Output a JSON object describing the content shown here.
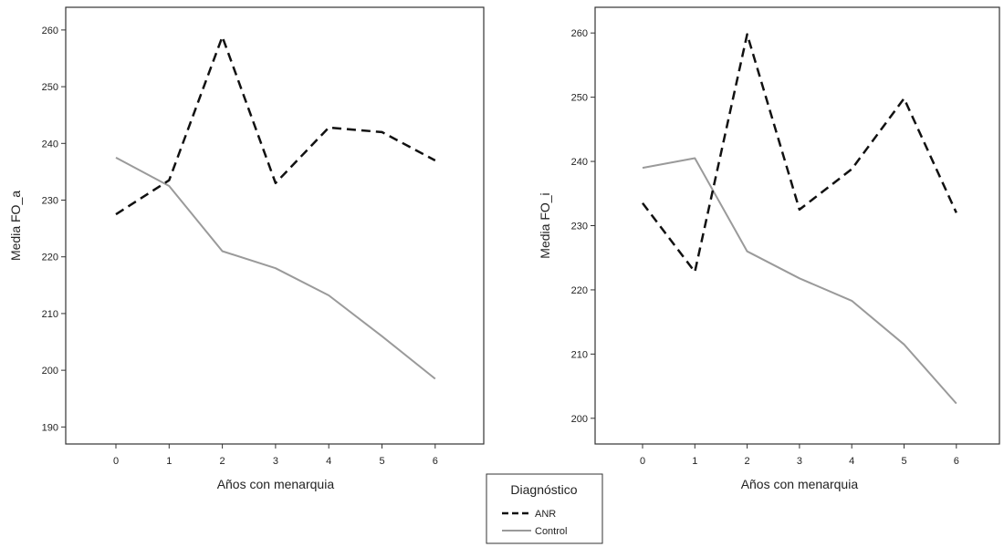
{
  "chart_data": [
    {
      "type": "line",
      "ylabel": "Media FO_a",
      "xlabel": "Años con menarquia",
      "categories": [
        "0",
        "1",
        "2",
        "3",
        "4",
        "5",
        "6"
      ],
      "yticks": [
        "190",
        "200",
        "210",
        "220",
        "230",
        "240",
        "250",
        "260"
      ],
      "ylim": [
        187,
        264
      ],
      "series": [
        {
          "name": "ANR",
          "values": [
            227.5,
            233.5,
            258.8,
            233,
            242.8,
            242,
            237
          ]
        },
        {
          "name": "Control",
          "values": [
            237.5,
            232.5,
            221,
            218,
            213.2,
            206,
            198.5
          ]
        }
      ],
      "grid": false
    },
    {
      "type": "line",
      "ylabel": "Media FO_i",
      "xlabel": "Años con menarquia",
      "categories": [
        "0",
        "1",
        "2",
        "3",
        "4",
        "5",
        "6"
      ],
      "yticks": [
        "200",
        "210",
        "220",
        "230",
        "240",
        "250",
        "260"
      ],
      "ylim": [
        196,
        264
      ],
      "series": [
        {
          "name": "ANR",
          "values": [
            233.5,
            222.8,
            259.8,
            232.5,
            238.8,
            249.8,
            232
          ]
        },
        {
          "name": "Control",
          "values": [
            239,
            240.5,
            226,
            221.8,
            218.3,
            211.5,
            202.3
          ]
        }
      ],
      "grid": false
    }
  ],
  "legend": {
    "title": "Diagnóstico",
    "items": [
      {
        "label": "ANR",
        "color": "#111111",
        "style": "dashed"
      },
      {
        "label": "Control",
        "color": "#9a9a9a",
        "style": "solid"
      }
    ]
  },
  "colors": {
    "anr": "#111111",
    "control": "#9a9a9a"
  }
}
